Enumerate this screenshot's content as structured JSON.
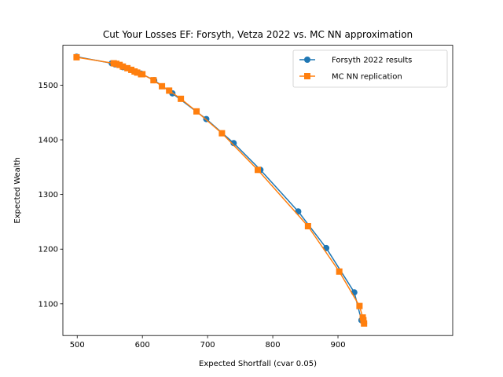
{
  "chart_data": {
    "type": "line",
    "title": "Cut Your Losses EF: Forsyth, Vetza 2022 vs. MC NN approximation",
    "xlabel": "Expected Shortfall (cvar 0.05)",
    "ylabel": "Expected Wealth",
    "xlim": [
      478,
      1076
    ],
    "ylim": [
      1042,
      1573
    ],
    "xticks": [
      500,
      600,
      700,
      800,
      900
    ],
    "yticks": [
      1100,
      1200,
      1300,
      1400,
      1500
    ],
    "xtick_labels": [
      "500",
      "600",
      "700",
      "800",
      "900"
    ],
    "ytick_labels": [
      "1100",
      "1200",
      "1300",
      "1400",
      "1500"
    ],
    "grid": false,
    "legend_position": "top-right",
    "series": [
      {
        "name": "Forsyth 2022 results",
        "color": "#1f77b4",
        "marker": "circle",
        "x": [
          499,
          553,
          558,
          570,
          583,
          598,
          618,
          646,
          698,
          740,
          781,
          839,
          882,
          925,
          936,
          940
        ],
        "y": [
          1552,
          1540,
          1538,
          1533,
          1528,
          1521,
          1509,
          1485,
          1438,
          1394,
          1345,
          1269,
          1202,
          1121,
          1070,
          1065
        ]
      },
      {
        "name": "MC NN replication",
        "color": "#ff7f0e",
        "marker": "square",
        "x": [
          499,
          556,
          560,
          565,
          570,
          577,
          583,
          588,
          592,
          598,
          600,
          617,
          630,
          641,
          659,
          683,
          722,
          777,
          854,
          902,
          933,
          938,
          939,
          940
        ],
        "y": [
          1551,
          1540,
          1539,
          1537,
          1534,
          1531,
          1528,
          1525,
          1523,
          1520,
          1520,
          1509,
          1498,
          1490,
          1475,
          1452,
          1412,
          1345,
          1242,
          1159,
          1096,
          1075,
          1070,
          1064
        ]
      }
    ]
  }
}
